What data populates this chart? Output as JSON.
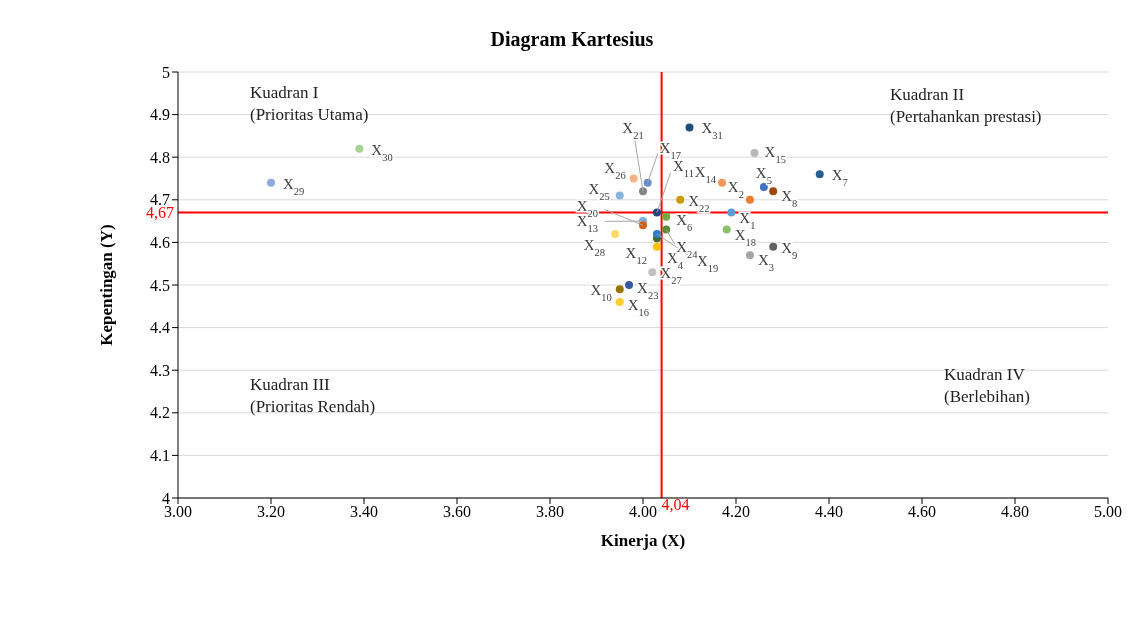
{
  "chart_data": {
    "type": "scatter",
    "title": "Diagram Kartesius",
    "xlabel": "Kinerja (X)",
    "ylabel": "Kepentingan (Y)",
    "x": [
      4.19,
      4.23,
      4.23,
      4.03,
      4.26,
      4.05,
      4.38,
      4.28,
      4.28,
      3.95,
      4.03,
      4.03,
      4.0,
      4.17,
      4.24,
      3.95,
      4.01,
      4.18,
      4.03,
      4.0,
      4.0,
      4.08,
      3.97,
      4.05,
      3.95,
      3.98,
      4.02,
      3.94,
      3.2,
      3.39,
      4.1
    ],
    "values": [
      4.67,
      4.7,
      4.57,
      4.59,
      4.73,
      4.66,
      4.76,
      4.72,
      4.59,
      4.49,
      4.67,
      4.61,
      4.65,
      4.74,
      4.81,
      4.46,
      4.74,
      4.63,
      4.62,
      4.64,
      4.72,
      4.7,
      4.5,
      4.63,
      4.71,
      4.75,
      4.53,
      4.62,
      4.74,
      4.82,
      4.87
    ],
    "colors": [
      "#5b9bd5",
      "#ed7d31",
      "#a5a5a5",
      "#ffc000",
      "#4472c4",
      "#70ad47",
      "#255e91",
      "#9e480e",
      "#636363",
      "#997300",
      "#264478",
      "#43682b",
      "#7cafdd",
      "#f1975a",
      "#b7b7b7",
      "#ffcd33",
      "#698ed0",
      "#8cc168",
      "#327dc2",
      "#d26012",
      "#848484",
      "#cc9a00",
      "#335aa1",
      "#5a8a39",
      "#8cb4e0",
      "#f4b183",
      "#c0c0c0",
      "#ffd966",
      "#8faadc",
      "#a9d18e",
      "#1f4e79"
    ],
    "xlim": [
      3,
      5
    ],
    "xticks": [
      {
        "value": 3,
        "label": "3.00"
      },
      {
        "value": 3.2,
        "label": "3.20"
      },
      {
        "value": 3.4,
        "label": "3.40"
      },
      {
        "value": 3.6,
        "label": "3.60"
      },
      {
        "value": 3.8,
        "label": "3.80"
      },
      {
        "value": 4,
        "label": "4.00"
      },
      {
        "value": 4.2,
        "label": "4.20"
      },
      {
        "value": 4.4,
        "label": "4.40"
      },
      {
        "value": 4.6,
        "label": "4.60"
      },
      {
        "value": 4.8,
        "label": "4.80"
      },
      {
        "value": 5,
        "label": "5.00"
      }
    ],
    "ylim": [
      4,
      5
    ],
    "yticks": [
      4,
      4.1,
      4.2,
      4.3,
      4.4,
      4.5,
      4.6,
      4.7,
      4.8,
      4.9,
      5
    ],
    "grid": "y",
    "marker": "circle",
    "ref_lines": [
      {
        "axis": "x",
        "value": 4.04,
        "label": "4,04",
        "color": "#ff0000"
      },
      {
        "axis": "y",
        "value": 4.67,
        "label": "4,67",
        "color": "#ff0000"
      }
    ],
    "annotations": [
      "Kuadran I\n(Prioritas Utama)",
      "Kuadran II\n(Pertahankan prestasi)",
      "Kuadran III\n(Prioritas Rendah)",
      "Kuadran IV\n(Berlebihan)",
      {
        "text": "X$_{1}$",
        "x": 4.19,
        "y": 4.67
      },
      {
        "text": "X$_{2}$",
        "x": 4.23,
        "y": 4.7
      },
      {
        "text": "X$_{3}$",
        "x": 4.23,
        "y": 4.57
      },
      {
        "text": "X$_{4}$",
        "x": 4.03,
        "y": 4.59
      },
      {
        "text": "X$_{5}$",
        "x": 4.26,
        "y": 4.73
      },
      {
        "text": "X$_{6}$",
        "x": 4.05,
        "y": 4.66
      },
      {
        "text": "X$_{7}$",
        "x": 4.38,
        "y": 4.76
      },
      {
        "text": "X$_{8}$",
        "x": 4.28,
        "y": 4.72
      },
      {
        "text": "X$_{9}$",
        "x": 4.28,
        "y": 4.59
      },
      {
        "text": "X$_{10}$",
        "x": 3.95,
        "y": 4.49
      },
      {
        "text": "X$_{11}$",
        "x": 4.03,
        "y": 4.67
      },
      {
        "text": "X$_{12}$",
        "x": 4.03,
        "y": 4.61
      },
      {
        "text": "X$_{13}$",
        "x": 4.0,
        "y": 4.65
      },
      {
        "text": "X$_{14}$",
        "x": 4.17,
        "y": 4.74
      },
      {
        "text": "X$_{15}$",
        "x": 4.24,
        "y": 4.81
      },
      {
        "text": "X$_{16}$",
        "x": 3.95,
        "y": 4.46
      },
      {
        "text": "X$_{17}$",
        "x": 4.01,
        "y": 4.74
      },
      {
        "text": "X$_{18}$",
        "x": 4.18,
        "y": 4.63
      },
      {
        "text": "X$_{19}$",
        "x": 4.03,
        "y": 4.62
      },
      {
        "text": "X$_{20}$",
        "x": 4.0,
        "y": 4.64
      },
      {
        "text": "X$_{21}$",
        "x": 4.0,
        "y": 4.72
      },
      {
        "text": "X$_{22}$",
        "x": 4.08,
        "y": 4.7
      },
      {
        "text": "X$_{23}$",
        "x": 3.97,
        "y": 4.5
      },
      {
        "text": "X$_{24}$",
        "x": 4.05,
        "y": 4.63
      },
      {
        "text": "X$_{25}$",
        "x": 3.95,
        "y": 4.71
      },
      {
        "text": "X$_{26}$",
        "x": 3.98,
        "y": 4.75
      },
      {
        "text": "X$_{27}$",
        "x": 4.02,
        "y": 4.53
      },
      {
        "text": "X$_{28}$",
        "x": 3.94,
        "y": 4.62
      },
      {
        "text": "X$_{29}$",
        "x": 3.2,
        "y": 4.74
      },
      {
        "text": "X$_{30}$",
        "x": 3.39,
        "y": 4.82
      },
      {
        "text": "X$_{31}$",
        "x": 4.1,
        "y": 4.87
      }
    ]
  }
}
